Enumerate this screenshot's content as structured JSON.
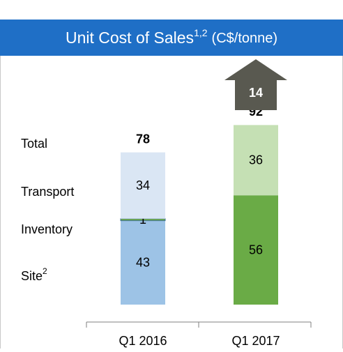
{
  "chart_data": {
    "type": "bar",
    "stacked": true,
    "title": "Unit Cost of Sales",
    "title_superscript": "1,2",
    "subtitle": "(C$/tonne)",
    "header_color": "#1f6fc6",
    "categories": [
      "Q1 2016",
      "Q1 2017"
    ],
    "series": [
      {
        "name": "Site",
        "name_superscript": "2",
        "colors": [
          "#9dc3e6",
          "#6aab46"
        ],
        "values": [
          43,
          56
        ]
      },
      {
        "name": "Inventory",
        "colors": [
          "#70ad47",
          "#70ad47"
        ],
        "values": [
          1,
          null
        ]
      },
      {
        "name": "Transport",
        "colors": [
          "#dae6f4",
          "#c5e0b4"
        ],
        "values": [
          34,
          36
        ]
      }
    ],
    "totals_label": "Total",
    "totals": [
      78,
      92
    ],
    "change": {
      "value": 14,
      "color": "#595950"
    }
  }
}
